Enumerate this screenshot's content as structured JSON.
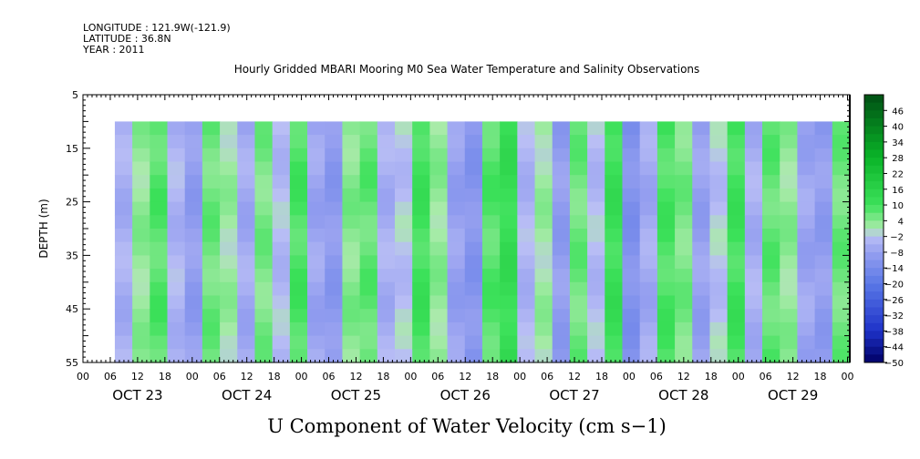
{
  "header": {
    "longitude": "LONGITUDE : 121.9W(-121.9)",
    "latitude": "LATITUDE : 36.8N",
    "year": "YEAR : 2011"
  },
  "chart_data": {
    "type": "heatmap",
    "title": "Hourly Gridded MBARI Mooring M0 Sea Water Temperature and Salinity Observations",
    "xlabel": "U Component of Water Velocity (cm s−1)",
    "ylabel": "DEPTH (m)",
    "y_ticks": [
      5,
      15,
      25,
      35,
      45,
      55
    ],
    "ylim": [
      55,
      5
    ],
    "xlim": [
      "2011-10-23T00:00",
      "2011-10-30T00:30"
    ],
    "x_hour_ticks": [
      "00",
      "06",
      "12",
      "18",
      "00",
      "06",
      "12",
      "18",
      "00",
      "06",
      "12",
      "18",
      "00",
      "06",
      "12",
      "18",
      "00",
      "06",
      "12",
      "18",
      "00",
      "06",
      "12",
      "18",
      "00",
      "06",
      "12",
      "18",
      "00"
    ],
    "day_labels": [
      "OCT 23",
      "OCT 24",
      "OCT 25",
      "OCT 26",
      "OCT 27",
      "OCT 28",
      "OCT 29"
    ],
    "data_time_range": [
      "2011-10-23T07:00",
      "2011-10-30T00:30"
    ],
    "data_depth_range": [
      10,
      55
    ],
    "colorbar": {
      "levels": [
        46,
        40,
        34,
        28,
        22,
        16,
        10,
        4,
        -2,
        -8,
        -14,
        -20,
        -26,
        -32,
        -38,
        -44,
        -50
      ],
      "min": -50,
      "max": 52,
      "step": 3
    },
    "band_values_cm_s": [
      -5,
      3,
      8,
      -4,
      -9,
      6,
      2,
      -6,
      5,
      -3,
      9,
      -7,
      -10,
      4,
      7,
      -5,
      -2,
      10,
      3,
      -8,
      -11,
      8,
      12,
      -4,
      2,
      -9,
      6,
      -3,
      11,
      -12,
      -6,
      9,
      5,
      -8,
      -2,
      10,
      -5,
      7,
      3,
      -7,
      -9,
      6
    ]
  }
}
